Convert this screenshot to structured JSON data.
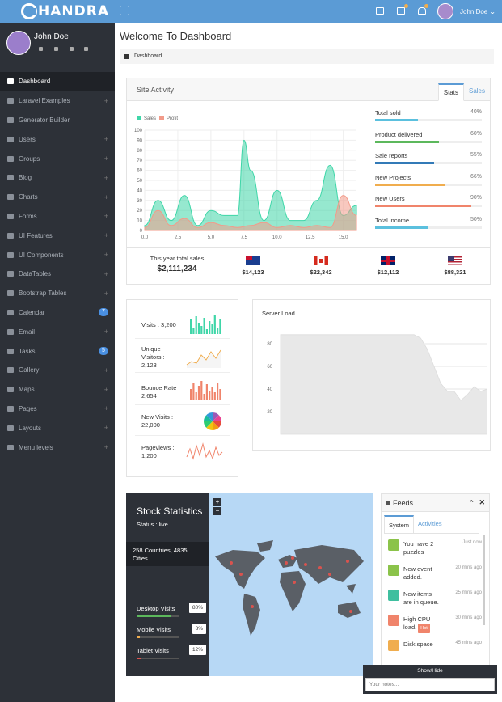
{
  "brand": {
    "name": "HANDRA"
  },
  "user": {
    "name": "John Doe"
  },
  "sidebar": {
    "items": [
      {
        "label": "Dashboard",
        "icon": "dashboard-icon",
        "active": true
      },
      {
        "label": "Laravel Examples",
        "icon": "cogs-icon",
        "plus": true
      },
      {
        "label": "Generator Builder",
        "icon": "anchor-icon"
      },
      {
        "label": "Users",
        "icon": "paw-icon",
        "plus": true
      },
      {
        "label": "Groups",
        "icon": "users-icon",
        "plus": true
      },
      {
        "label": "Blog",
        "icon": "newspaper-icon",
        "plus": true
      },
      {
        "label": "Charts",
        "icon": "bar-chart-icon",
        "plus": true
      },
      {
        "label": "Forms",
        "icon": "check-square-icon",
        "plus": true
      },
      {
        "label": "UI Features",
        "icon": "desktop-icon",
        "plus": true
      },
      {
        "label": "UI Components",
        "icon": "briefcase-icon",
        "plus": true
      },
      {
        "label": "DataTables",
        "icon": "table-icon",
        "plus": true
      },
      {
        "label": "Bootstrap Tables",
        "icon": "table-icon",
        "plus": true
      },
      {
        "label": "Calendar",
        "icon": "calendar-icon",
        "badge": "7"
      },
      {
        "label": "Email",
        "icon": "envelope-icon",
        "plus": true
      },
      {
        "label": "Tasks",
        "icon": "list-icon",
        "badge": "5"
      },
      {
        "label": "Gallery",
        "icon": "image-icon",
        "plus": true
      },
      {
        "label": "Maps",
        "icon": "map-marker-icon",
        "plus": true
      },
      {
        "label": "Pages",
        "icon": "files-icon",
        "plus": true
      },
      {
        "label": "Layouts",
        "icon": "th-icon",
        "plus": true
      },
      {
        "label": "Menu levels",
        "icon": "sitemap-icon",
        "plus": true
      }
    ]
  },
  "page": {
    "title": "Welcome To Dashboard",
    "breadcrumb": "Dashboard"
  },
  "site_activity": {
    "title": "Site Activity",
    "tabs": [
      "Stats",
      "Sales"
    ],
    "stats": [
      {
        "label": "Total sold",
        "pct": "40%",
        "value": 0.4,
        "color": "#5bc0de"
      },
      {
        "label": "Product delivered",
        "pct": "60%",
        "value": 0.6,
        "color": "#5cb85c"
      },
      {
        "label": "Sale reports",
        "pct": "55%",
        "value": 0.55,
        "color": "#337ab7"
      },
      {
        "label": "New Projects",
        "pct": "66%",
        "value": 0.66,
        "color": "#f0ad4e"
      },
      {
        "label": "New Users",
        "pct": "90%",
        "value": 0.9,
        "color": "#f0846b"
      },
      {
        "label": "Total income",
        "pct": "50%",
        "value": 0.5,
        "color": "#5bc0de"
      }
    ],
    "total_label": "This year total sales",
    "total_value": "$2,111,234",
    "flags": [
      {
        "value": "$14,123"
      },
      {
        "value": "$22,342"
      },
      {
        "value": "$12,112"
      },
      {
        "value": "$88,321"
      }
    ]
  },
  "visits": [
    {
      "label": "Visits : 3,200"
    },
    {
      "label": "Unique Visitors : 2,123"
    },
    {
      "label": "Bounce Rate : 2,654"
    },
    {
      "label": "New Visits : 22,000"
    },
    {
      "label": "Pageviews : 1,200"
    }
  ],
  "server_load": {
    "title": "Server Load"
  },
  "stock": {
    "title": "Stock Statistics",
    "status": "Status : live",
    "countries": "258 Countries, 4835 Cities",
    "items": [
      {
        "label": "Desktop Visits",
        "pct": "80%",
        "value": 0.8,
        "color": "#5cb85c"
      },
      {
        "label": "Mobile Visits",
        "pct": "8%",
        "value": 0.08,
        "color": "#f0ad4e"
      },
      {
        "label": "Tablet Visits",
        "pct": "12%",
        "value": 0.12,
        "color": "#d9534f"
      }
    ]
  },
  "feeds": {
    "title": "Feeds",
    "tabs": [
      "System",
      "Activities"
    ],
    "items": [
      {
        "text": "You have 2 puzzles",
        "time": "Just now",
        "color": "#8bc34a"
      },
      {
        "text": "New event added.",
        "time": "20 mins ago",
        "color": "#8bc34a"
      },
      {
        "text": "New items are in queue.",
        "time": "25 mins ago",
        "color": "#3fbf9f"
      },
      {
        "text": "High CPU load.",
        "hot": "Hot",
        "time": "30 mins ago",
        "color": "#f0846b"
      },
      {
        "text": "Disk space",
        "time": "45 mins ago",
        "color": "#f0ad4e"
      }
    ]
  },
  "notes": {
    "toggle": "Show/Hide",
    "placeholder": "Your notes..."
  },
  "chart_data": [
    {
      "type": "area",
      "legend": [
        "Sales",
        "Profit"
      ],
      "x_ticks": [
        "0.0",
        "2.5",
        "5.0",
        "7.5",
        "10.0",
        "12.5",
        "15.0"
      ],
      "y_ticks": [
        "0",
        "10",
        "20",
        "30",
        "40",
        "50",
        "60",
        "70",
        "80",
        "90",
        "100"
      ],
      "xlim": [
        0,
        16
      ],
      "ylim": [
        0,
        100
      ],
      "series": [
        {
          "name": "Sales",
          "color": "#3fd6a8",
          "x": [
            0,
            1,
            2,
            3,
            4,
            5,
            6,
            7,
            7.5,
            8,
            9,
            10,
            11,
            12,
            13,
            14,
            15,
            16
          ],
          "y": [
            5,
            30,
            10,
            35,
            5,
            20,
            15,
            15,
            90,
            60,
            10,
            40,
            10,
            10,
            30,
            65,
            15,
            25
          ]
        },
        {
          "name": "Profit",
          "color": "#f29b8a",
          "x": [
            0,
            1,
            2,
            3,
            4,
            5,
            6,
            7,
            8,
            9,
            10,
            11,
            12,
            13,
            14,
            15,
            16
          ],
          "y": [
            3,
            20,
            5,
            12,
            3,
            8,
            5,
            3,
            5,
            8,
            3,
            5,
            3,
            5,
            3,
            35,
            15
          ]
        }
      ]
    },
    {
      "type": "area",
      "title": "Server Load",
      "y_ticks": [
        "20",
        "40",
        "60",
        "80"
      ],
      "ylim": [
        0,
        100
      ],
      "y": [
        88,
        88,
        88,
        88,
        88,
        88,
        88,
        88,
        88,
        88,
        88,
        88,
        88,
        88,
        88,
        88,
        88,
        88,
        88,
        88,
        88,
        85,
        75,
        60,
        45,
        38,
        38,
        30,
        35,
        42,
        38,
        40
      ]
    }
  ]
}
